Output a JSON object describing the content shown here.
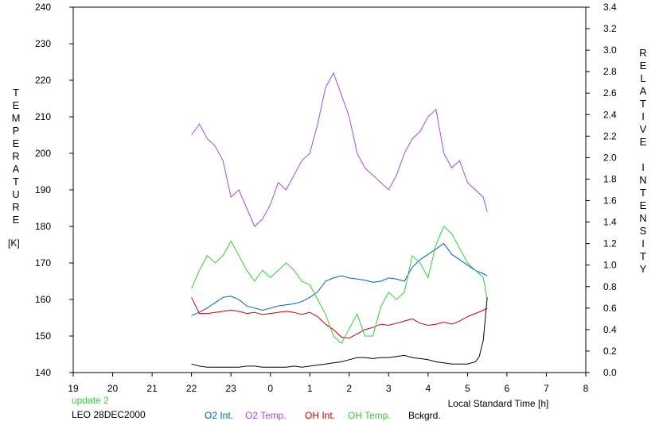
{
  "chart_data": {
    "type": "line",
    "left_axis": {
      "title": "TEMPERATURE",
      "unit": "[K]",
      "ylim": [
        140,
        240
      ],
      "ticks": [
        "140",
        "150",
        "160",
        "170",
        "180",
        "190",
        "200",
        "210",
        "220",
        "230",
        "240"
      ]
    },
    "right_axis": {
      "title_word1": "RELATIVE",
      "title_word2": "INTENSITY",
      "ylim": [
        0.0,
        3.4
      ],
      "ticks": [
        "0.0",
        "0.2",
        "0.4",
        "0.6",
        "0.8",
        "1.0",
        "1.2",
        "1.4",
        "1.6",
        "1.8",
        "2.0",
        "2.2",
        "2.4",
        "2.6",
        "2.8",
        "3.0",
        "3.2",
        "3.4"
      ]
    },
    "x_axis": {
      "label": "Local Standard Time [h]",
      "ticks": [
        "19",
        "20",
        "21",
        "22",
        "23",
        "0",
        "1",
        "2",
        "3",
        "4",
        "5",
        "6",
        "7",
        "8"
      ]
    },
    "grid": false,
    "series": [
      {
        "name": "O2 Int.",
        "color": "#0060c0",
        "axis": "right",
        "x": [
          22.0,
          22.2,
          22.4,
          22.6,
          22.8,
          23.0,
          23.2,
          23.4,
          23.6,
          23.8,
          24.0,
          24.2,
          24.4,
          24.6,
          24.8,
          25.0,
          25.2,
          25.4,
          25.6,
          25.8,
          26.0,
          26.2,
          26.4,
          26.6,
          26.8,
          27.0,
          27.2,
          27.4,
          27.6,
          27.8,
          28.0,
          28.2,
          28.4,
          28.6,
          28.8,
          29.0,
          29.2,
          29.4,
          29.5
        ],
        "y": [
          0.53,
          0.56,
          0.6,
          0.65,
          0.7,
          0.71,
          0.68,
          0.62,
          0.6,
          0.58,
          0.6,
          0.62,
          0.63,
          0.64,
          0.66,
          0.7,
          0.75,
          0.85,
          0.88,
          0.9,
          0.88,
          0.87,
          0.86,
          0.84,
          0.85,
          0.88,
          0.87,
          0.85,
          0.98,
          1.05,
          1.1,
          1.15,
          1.2,
          1.1,
          1.05,
          1.0,
          0.95,
          0.92,
          0.9
        ]
      },
      {
        "name": "O2 Temp.",
        "color": "#9b4fd6",
        "axis": "left",
        "x": [
          22.0,
          22.2,
          22.4,
          22.6,
          22.8,
          23.0,
          23.2,
          23.4,
          23.6,
          23.8,
          24.0,
          24.2,
          24.4,
          24.6,
          24.8,
          25.0,
          25.2,
          25.4,
          25.6,
          25.8,
          26.0,
          26.2,
          26.4,
          26.6,
          26.8,
          27.0,
          27.2,
          27.4,
          27.6,
          27.8,
          28.0,
          28.2,
          28.4,
          28.6,
          28.8,
          29.0,
          29.2,
          29.4,
          29.5
        ],
        "y": [
          205,
          208,
          204,
          202,
          198,
          188,
          190,
          185,
          180,
          182,
          186,
          192,
          190,
          194,
          198,
          200,
          208,
          218,
          222,
          216,
          210,
          200,
          196,
          194,
          192,
          190,
          194,
          200,
          204,
          206,
          210,
          212,
          200,
          196,
          198,
          192,
          190,
          188,
          184
        ]
      },
      {
        "name": "OH Int.",
        "color": "#cc0000",
        "axis": "right",
        "x": [
          22.0,
          22.2,
          22.4,
          22.6,
          22.8,
          23.0,
          23.2,
          23.4,
          23.6,
          23.8,
          24.0,
          24.2,
          24.4,
          24.6,
          24.8,
          25.0,
          25.2,
          25.4,
          25.6,
          25.8,
          26.0,
          26.2,
          26.4,
          26.6,
          26.8,
          27.0,
          27.2,
          27.4,
          27.6,
          27.8,
          28.0,
          28.2,
          28.4,
          28.6,
          28.8,
          29.0,
          29.2,
          29.4,
          29.5
        ],
        "y": [
          0.7,
          0.55,
          0.55,
          0.56,
          0.57,
          0.58,
          0.57,
          0.55,
          0.56,
          0.54,
          0.55,
          0.56,
          0.57,
          0.56,
          0.54,
          0.56,
          0.52,
          0.45,
          0.4,
          0.33,
          0.32,
          0.36,
          0.4,
          0.42,
          0.45,
          0.44,
          0.46,
          0.48,
          0.5,
          0.46,
          0.44,
          0.45,
          0.47,
          0.45,
          0.48,
          0.52,
          0.55,
          0.58,
          0.6
        ]
      },
      {
        "name": "OH Temp.",
        "color": "#33cc33",
        "axis": "left",
        "x": [
          22.0,
          22.2,
          22.4,
          22.6,
          22.8,
          23.0,
          23.2,
          23.4,
          23.6,
          23.8,
          24.0,
          24.2,
          24.4,
          24.6,
          24.8,
          25.0,
          25.2,
          25.4,
          25.6,
          25.8,
          26.0,
          26.2,
          26.4,
          26.6,
          26.8,
          27.0,
          27.2,
          27.4,
          27.6,
          27.8,
          28.0,
          28.2,
          28.4,
          28.6,
          28.8,
          29.0,
          29.2,
          29.4,
          29.5
        ],
        "y": [
          163,
          168,
          172,
          170,
          172,
          176,
          172,
          168,
          165,
          168,
          166,
          168,
          170,
          168,
          165,
          164,
          160,
          156,
          150,
          148,
          152,
          156,
          150,
          150,
          158,
          162,
          160,
          162,
          172,
          170,
          166,
          175,
          180,
          178,
          174,
          170,
          168,
          166,
          160
        ]
      },
      {
        "name": "Bckgrd.",
        "color": "#000000",
        "axis": "right",
        "x": [
          22.0,
          22.2,
          22.4,
          22.6,
          22.8,
          23.0,
          23.2,
          23.4,
          23.6,
          23.8,
          24.0,
          24.2,
          24.4,
          24.6,
          24.8,
          25.0,
          25.2,
          25.4,
          25.6,
          25.8,
          26.0,
          26.2,
          26.4,
          26.6,
          26.8,
          27.0,
          27.2,
          27.4,
          27.6,
          27.8,
          28.0,
          28.2,
          28.4,
          28.6,
          28.8,
          29.0,
          29.2,
          29.3,
          29.4,
          29.45,
          29.5
        ],
        "y": [
          0.08,
          0.06,
          0.05,
          0.05,
          0.05,
          0.05,
          0.05,
          0.06,
          0.06,
          0.05,
          0.05,
          0.05,
          0.05,
          0.06,
          0.05,
          0.06,
          0.07,
          0.08,
          0.09,
          0.1,
          0.12,
          0.14,
          0.14,
          0.13,
          0.14,
          0.14,
          0.15,
          0.16,
          0.14,
          0.13,
          0.12,
          0.1,
          0.09,
          0.08,
          0.08,
          0.08,
          0.1,
          0.15,
          0.3,
          0.5,
          0.7
        ]
      }
    ]
  },
  "footer": {
    "update": "update 2",
    "station": "LEO 28DEC2000"
  },
  "colors": {
    "update_text": "#33cc33"
  }
}
